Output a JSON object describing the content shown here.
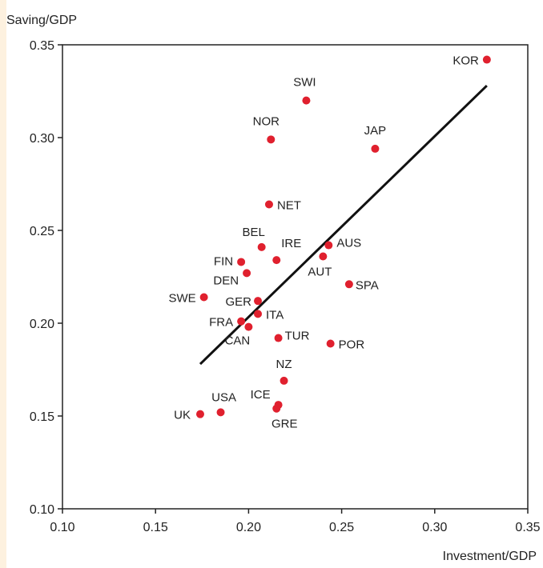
{
  "chart_data": {
    "type": "scatter",
    "title": "",
    "xlabel": "Investment/GDP",
    "ylabel": "Saving/GDP",
    "xlim": [
      0.1,
      0.35
    ],
    "ylim": [
      0.1,
      0.35
    ],
    "xticks": [
      "0.10",
      "0.15",
      "0.20",
      "0.25",
      "0.30",
      "0.35"
    ],
    "yticks": [
      "0.10",
      "0.15",
      "0.20",
      "0.25",
      "0.30",
      "0.35"
    ],
    "grid": false,
    "point_color": "#e0202e",
    "line_color": "#111111",
    "points": [
      {
        "label": "KOR",
        "x": 0.328,
        "y": 0.342
      },
      {
        "label": "SWI",
        "x": 0.231,
        "y": 0.32
      },
      {
        "label": "NOR",
        "x": 0.212,
        "y": 0.299
      },
      {
        "label": "JAP",
        "x": 0.268,
        "y": 0.294
      },
      {
        "label": "NET",
        "x": 0.211,
        "y": 0.264
      },
      {
        "label": "BEL",
        "x": 0.207,
        "y": 0.241
      },
      {
        "label": "IRE",
        "x": 0.215,
        "y": 0.234
      },
      {
        "label": "AUS",
        "x": 0.243,
        "y": 0.242
      },
      {
        "label": "AUT",
        "x": 0.24,
        "y": 0.236
      },
      {
        "label": "FIN",
        "x": 0.196,
        "y": 0.233
      },
      {
        "label": "DEN",
        "x": 0.199,
        "y": 0.227
      },
      {
        "label": "SPA",
        "x": 0.254,
        "y": 0.221
      },
      {
        "label": "SWE",
        "x": 0.176,
        "y": 0.214
      },
      {
        "label": "GER",
        "x": 0.205,
        "y": 0.212
      },
      {
        "label": "ITA",
        "x": 0.205,
        "y": 0.205
      },
      {
        "label": "FRA",
        "x": 0.196,
        "y": 0.201
      },
      {
        "label": "CAN",
        "x": 0.2,
        "y": 0.198
      },
      {
        "label": "TUR",
        "x": 0.216,
        "y": 0.192
      },
      {
        "label": "POR",
        "x": 0.244,
        "y": 0.189
      },
      {
        "label": "NZ",
        "x": 0.219,
        "y": 0.169
      },
      {
        "label": "ICE",
        "x": 0.216,
        "y": 0.156
      },
      {
        "label": "GRE",
        "x": 0.215,
        "y": 0.154
      },
      {
        "label": "USA",
        "x": 0.185,
        "y": 0.152
      },
      {
        "label": "UK",
        "x": 0.174,
        "y": 0.151
      }
    ],
    "trend_line": {
      "x": [
        0.174,
        0.328
      ],
      "y": [
        0.178,
        0.328
      ]
    }
  }
}
